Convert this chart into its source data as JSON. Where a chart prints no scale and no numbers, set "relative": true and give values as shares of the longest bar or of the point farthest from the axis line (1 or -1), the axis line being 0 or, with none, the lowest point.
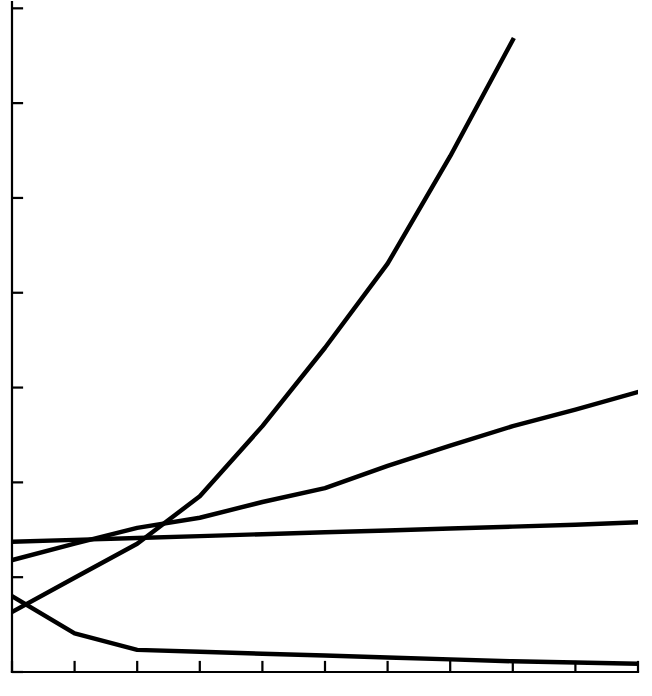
{
  "chart_data": {
    "type": "line",
    "relative": true,
    "grid": false,
    "legend": false,
    "marker": "none",
    "line_style": "solid",
    "categories": [
      null,
      null,
      null,
      null,
      null,
      null,
      null,
      null,
      null,
      null,
      null
    ],
    "series": [
      {
        "color": "#000000",
        "values": [
          0.095,
          0.149,
          0.203,
          0.278,
          0.389,
          0.513,
          0.646,
          0.816,
          1.0,
          null,
          null
        ]
      },
      {
        "color": "#000000",
        "values": [
          0.177,
          0.203,
          0.228,
          0.244,
          0.269,
          0.291,
          0.326,
          0.358,
          0.389,
          0.415,
          0.443
        ]
      },
      {
        "color": "#000000",
        "values": [
          0.206,
          0.209,
          0.212,
          0.215,
          0.218,
          0.221,
          0.224,
          0.227,
          0.23,
          0.233,
          0.237
        ]
      },
      {
        "color": "#000000",
        "values": [
          0.12,
          0.061,
          0.035,
          0.032,
          0.029,
          0.026,
          0.023,
          0.02,
          0.017,
          0.015,
          0.013
        ]
      }
    ]
  }
}
